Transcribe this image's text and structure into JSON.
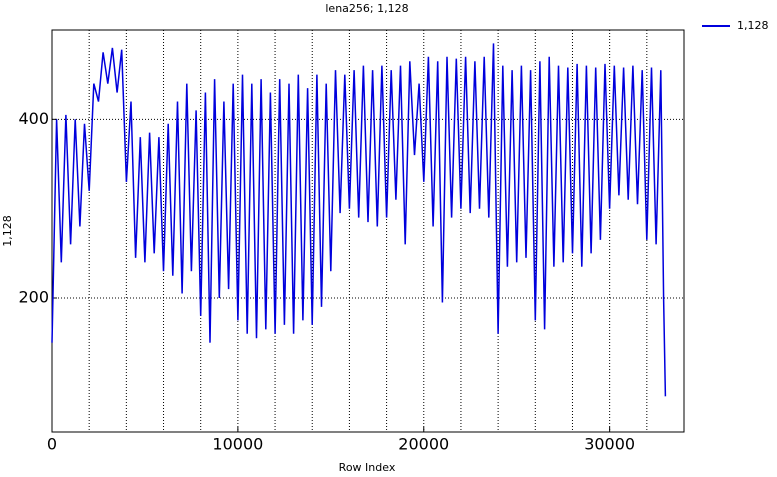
{
  "chart_data": {
    "type": "line",
    "title": "lena256; 1,128",
    "x_label": "Row Index",
    "y_label": "1,128",
    "xlim": [
      0,
      34000
    ],
    "ylim": [
      50,
      500
    ],
    "xticks": [
      0,
      10000,
      20000,
      30000
    ],
    "yticks": [
      200,
      400
    ],
    "xgrid": [
      2000,
      4000,
      6000,
      8000,
      10000,
      12000,
      14000,
      16000,
      18000,
      20000,
      22000,
      24000,
      26000,
      28000,
      30000,
      32000
    ],
    "grid": true,
    "legend": "upper right",
    "series": [
      {
        "name": "1,128",
        "color": "#0000dd",
        "x": [
          0,
          250,
          500,
          750,
          1000,
          1250,
          1500,
          1750,
          2000,
          2250,
          2500,
          2750,
          3000,
          3250,
          3500,
          3750,
          4000,
          4250,
          4500,
          4750,
          5000,
          5250,
          5500,
          5750,
          6000,
          6250,
          6500,
          6750,
          7000,
          7250,
          7500,
          7750,
          8000,
          8250,
          8500,
          8750,
          9000,
          9250,
          9500,
          9750,
          10000,
          10250,
          10500,
          10750,
          11000,
          11250,
          11500,
          11750,
          12000,
          12250,
          12500,
          12750,
          13000,
          13250,
          13500,
          13750,
          14000,
          14250,
          14500,
          14750,
          15000,
          15250,
          15500,
          15750,
          16000,
          16250,
          16500,
          16750,
          17000,
          17250,
          17500,
          17750,
          18000,
          18250,
          18500,
          18750,
          19000,
          19250,
          19500,
          19750,
          20000,
          20250,
          20500,
          20750,
          21000,
          21250,
          21500,
          21750,
          22000,
          22250,
          22500,
          22750,
          23000,
          23250,
          23500,
          23750,
          24000,
          24250,
          24500,
          24750,
          25000,
          25250,
          25500,
          25750,
          26000,
          26250,
          26500,
          26750,
          27000,
          27250,
          27500,
          27750,
          28000,
          28250,
          28500,
          28750,
          29000,
          29250,
          29500,
          29750,
          30000,
          30250,
          30500,
          30750,
          31000,
          31250,
          31500,
          31750,
          32000,
          32250,
          32500,
          32750,
          32900,
          33000
        ],
        "values": [
          150,
          400,
          240,
          405,
          260,
          400,
          280,
          395,
          320,
          440,
          420,
          475,
          440,
          480,
          430,
          478,
          330,
          420,
          245,
          380,
          240,
          385,
          250,
          380,
          230,
          395,
          225,
          420,
          205,
          440,
          230,
          410,
          180,
          430,
          150,
          445,
          200,
          420,
          210,
          440,
          175,
          450,
          160,
          440,
          155,
          445,
          165,
          430,
          160,
          445,
          170,
          440,
          160,
          450,
          175,
          435,
          170,
          450,
          190,
          440,
          230,
          455,
          295,
          450,
          300,
          455,
          290,
          460,
          285,
          455,
          280,
          460,
          290,
          455,
          310,
          460,
          260,
          465,
          360,
          440,
          330,
          470,
          280,
          465,
          195,
          470,
          290,
          468,
          300,
          470,
          295,
          465,
          300,
          470,
          290,
          485,
          160,
          460,
          235,
          455,
          240,
          460,
          245,
          455,
          175,
          465,
          165,
          470,
          235,
          460,
          240,
          458,
          250,
          462,
          235,
          460,
          250,
          458,
          265,
          462,
          300,
          460,
          315,
          458,
          310,
          460,
          305,
          455,
          265,
          458,
          260,
          455,
          200,
          90
        ]
      }
    ]
  }
}
